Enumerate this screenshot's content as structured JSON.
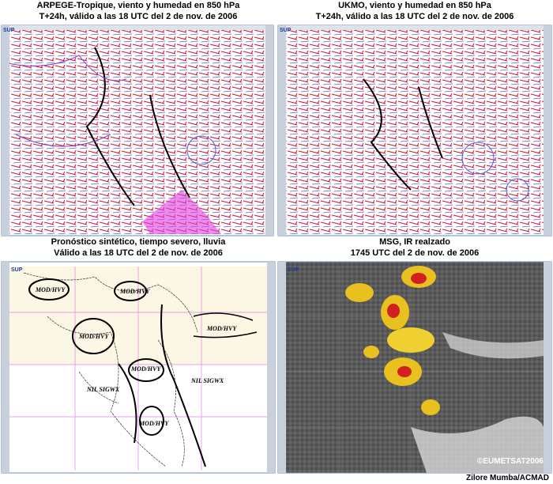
{
  "panels": [
    {
      "title": "ARPEGE-Tropique, viento y humedad en 850 hPa",
      "subtitle": "T+24h, válido a las 18 UTC del 2 de nov. de 2006",
      "toolbar": "SUP"
    },
    {
      "title": "UKMO, viento y humedad en 850 hPa",
      "subtitle": "T+24h, válido a las 18 UTC del 2 de nov. de 2006",
      "toolbar": "SUP"
    },
    {
      "title": "Pronóstico sintético, tiempo severo, lluvia",
      "subtitle": "Válido a las 18 UTC del 2 de nov. de 2006",
      "toolbar": "SUP",
      "labels": [
        "MOD/HVY",
        "MOD/HVY",
        "MOD/HVY",
        "MOD/HVY",
        "MOD/HVY",
        "MOD/HVY",
        "NIL SIGWX",
        "NIL SIGWX"
      ]
    },
    {
      "title": "MSG, IR realzado",
      "subtitle": "1745 UTC del 2 de nov. de 2006",
      "toolbar": "SUP",
      "copyright": "©EUMETSAT2006"
    }
  ],
  "footer": "Zilore Mumba/ACMAD"
}
